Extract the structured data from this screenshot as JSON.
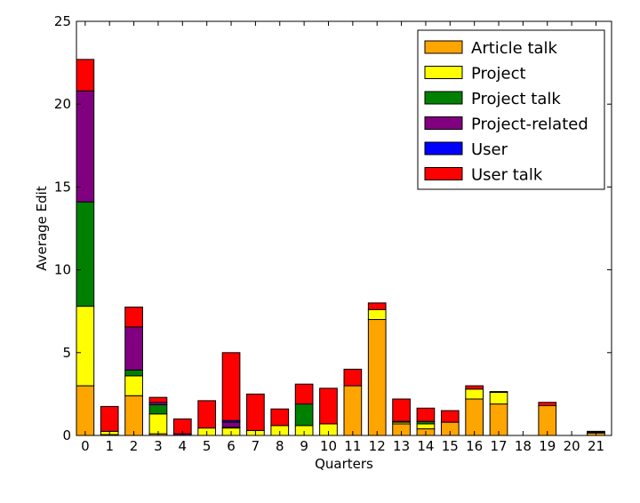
{
  "chart_data": {
    "type": "bar",
    "stacked": true,
    "title": "",
    "xlabel": "Quarters",
    "ylabel": "Average Edit",
    "ylim": [
      0,
      25
    ],
    "yticks": [
      0,
      5,
      10,
      15,
      20,
      25
    ],
    "categories": [
      "0",
      "1",
      "2",
      "3",
      "4",
      "5",
      "6",
      "7",
      "8",
      "9",
      "10",
      "11",
      "12",
      "13",
      "14",
      "15",
      "16",
      "17",
      "18",
      "19",
      "20",
      "21"
    ],
    "legend_position": "top-right",
    "grid": false,
    "series": [
      {
        "name": "Article talk",
        "color": "#ffa500",
        "values": [
          3.0,
          0.05,
          2.4,
          0.1,
          0.0,
          0.0,
          0.0,
          0.0,
          0.0,
          0.0,
          0.0,
          3.0,
          7.0,
          0.7,
          0.4,
          0.8,
          2.2,
          1.9,
          0.0,
          1.8,
          0.0,
          0.15
        ]
      },
      {
        "name": "Project",
        "color": "#ffff00",
        "values": [
          4.8,
          0.2,
          1.2,
          1.2,
          0.0,
          0.45,
          0.45,
          0.3,
          0.6,
          0.6,
          0.7,
          0.0,
          0.6,
          0.1,
          0.3,
          0.0,
          0.6,
          0.7,
          0.0,
          0.0,
          0.0,
          0.05
        ]
      },
      {
        "name": "Project talk",
        "color": "#008000",
        "values": [
          6.3,
          0.0,
          0.35,
          0.55,
          0.0,
          0.0,
          0.05,
          0.0,
          0.0,
          1.3,
          0.0,
          0.0,
          0.0,
          0.05,
          0.15,
          0.0,
          0.0,
          0.0,
          0.0,
          0.0,
          0.0,
          0.0
        ]
      },
      {
        "name": "Project-related",
        "color": "#800080",
        "values": [
          6.7,
          0.0,
          2.6,
          0.15,
          0.1,
          0.0,
          0.3,
          0.0,
          0.0,
          0.0,
          0.0,
          0.0,
          0.0,
          0.0,
          0.0,
          0.0,
          0.0,
          0.0,
          0.0,
          0.0,
          0.0,
          0.0
        ]
      },
      {
        "name": "User",
        "color": "#0000ff",
        "values": [
          0.0,
          0.0,
          0.0,
          0.0,
          0.0,
          0.0,
          0.1,
          0.0,
          0.0,
          0.0,
          0.0,
          0.0,
          0.0,
          0.0,
          0.0,
          0.0,
          0.0,
          0.0,
          0.0,
          0.0,
          0.0,
          0.0
        ]
      },
      {
        "name": "User talk",
        "color": "#ff0000",
        "values": [
          1.9,
          1.5,
          1.2,
          0.3,
          0.9,
          1.65,
          4.1,
          2.2,
          1.0,
          1.2,
          2.15,
          1.0,
          0.4,
          1.35,
          0.8,
          0.7,
          0.2,
          0.05,
          0.0,
          0.2,
          0.0,
          0.05
        ]
      }
    ]
  }
}
